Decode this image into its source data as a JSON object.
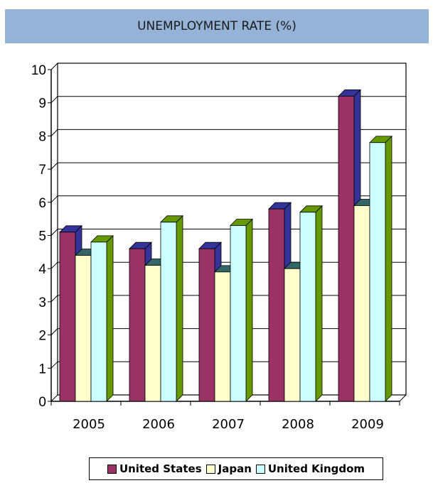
{
  "header": {
    "title": "UNEMPLOYMENT RATE (%)"
  },
  "chart_data": {
    "type": "bar",
    "title": "UNEMPLOYMENT RATE (%)",
    "categories": [
      "2005",
      "2006",
      "2007",
      "2008",
      "2009"
    ],
    "series": [
      {
        "name": "United States",
        "values": [
          5.1,
          4.6,
          4.6,
          5.8,
          9.2
        ],
        "color": "#993366",
        "top_color": "#333399"
      },
      {
        "name": "Japan",
        "values": [
          4.4,
          4.1,
          3.9,
          4.0,
          5.9
        ],
        "color": "#ffffcc",
        "top_color": "#336666"
      },
      {
        "name": "United Kingdom",
        "values": [
          4.8,
          5.4,
          5.3,
          5.7,
          7.8
        ],
        "color": "#ccffff",
        "top_color": "#669900"
      }
    ],
    "ylim": [
      0,
      10
    ],
    "yticks": [
      "0",
      "1",
      "2",
      "3",
      "4",
      "5",
      "6",
      "7",
      "8",
      "9",
      "10"
    ],
    "grid": true,
    "legend": "bottom"
  }
}
